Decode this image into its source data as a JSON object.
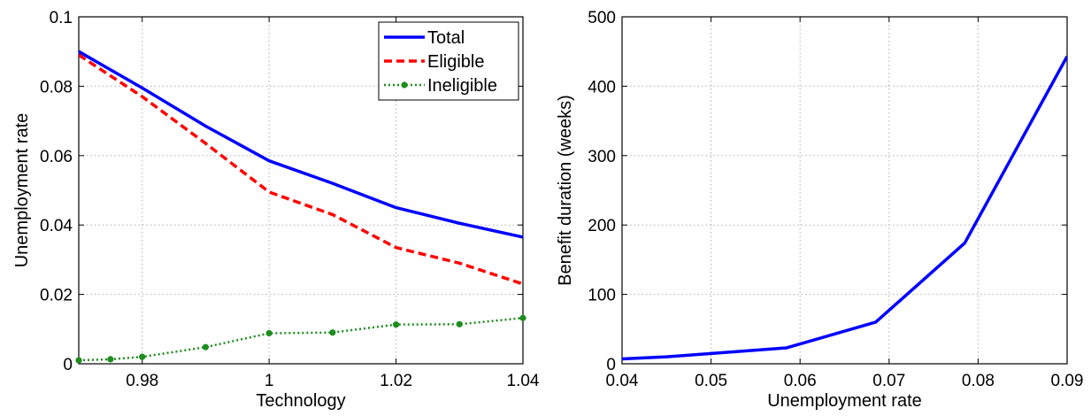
{
  "chart_data": [
    {
      "type": "line",
      "title": "",
      "xlabel": "Technology",
      "ylabel": "Unemployment rate",
      "xlim": [
        0.97,
        1.04
      ],
      "ylim": [
        0,
        0.1
      ],
      "xticks": [
        0.98,
        1,
        1.02,
        1.04
      ],
      "xtick_labels": [
        "0.98",
        "1",
        "1.02",
        "1.04"
      ],
      "yticks": [
        0,
        0.02,
        0.04,
        0.06,
        0.08,
        0.1
      ],
      "ytick_labels": [
        "0",
        "0.02",
        "0.04",
        "0.06",
        "0.08",
        "0.1"
      ],
      "grid": true,
      "legend_position": "top-right",
      "series": [
        {
          "name": "Total",
          "color": "#0000ff",
          "style": "solid",
          "x": [
            0.97,
            0.98,
            0.99,
            1.0,
            1.01,
            1.02,
            1.03,
            1.04
          ],
          "y": [
            0.09,
            0.0795,
            0.0685,
            0.0585,
            0.052,
            0.045,
            0.0405,
            0.0365
          ]
        },
        {
          "name": "Eligible",
          "color": "#ff0000",
          "style": "dashed",
          "x": [
            0.97,
            0.98,
            0.99,
            1.0,
            1.01,
            1.02,
            1.03,
            1.04
          ],
          "y": [
            0.089,
            0.077,
            0.0635,
            0.0495,
            0.043,
            0.0335,
            0.029,
            0.023
          ]
        },
        {
          "name": "Ineligible",
          "color": "#1e8c1e",
          "style": "dotted-markers",
          "x": [
            0.97,
            0.975,
            0.98,
            0.99,
            1.0,
            1.01,
            1.02,
            1.03,
            1.04
          ],
          "y": [
            0.001,
            0.0013,
            0.002,
            0.0048,
            0.0088,
            0.009,
            0.0113,
            0.0114,
            0.0132
          ]
        }
      ]
    },
    {
      "type": "line",
      "title": "",
      "xlabel": "Unemployment rate",
      "ylabel": "Benefit duration (weeks)",
      "xlim": [
        0.04,
        0.09
      ],
      "ylim": [
        0,
        500
      ],
      "xticks": [
        0.04,
        0.05,
        0.06,
        0.07,
        0.08,
        0.09
      ],
      "xtick_labels": [
        "0.04",
        "0.05",
        "0.06",
        "0.07",
        "0.08",
        "0.09"
      ],
      "yticks": [
        0,
        100,
        200,
        300,
        400,
        500
      ],
      "ytick_labels": [
        "0",
        "100",
        "200",
        "300",
        "400",
        "500"
      ],
      "grid": true,
      "series": [
        {
          "color": "#0000ff",
          "style": "solid",
          "x": [
            0.04,
            0.045,
            0.0585,
            0.0685,
            0.0785,
            0.09
          ],
          "y": [
            7,
            10,
            23,
            60,
            174,
            443
          ]
        }
      ]
    }
  ]
}
